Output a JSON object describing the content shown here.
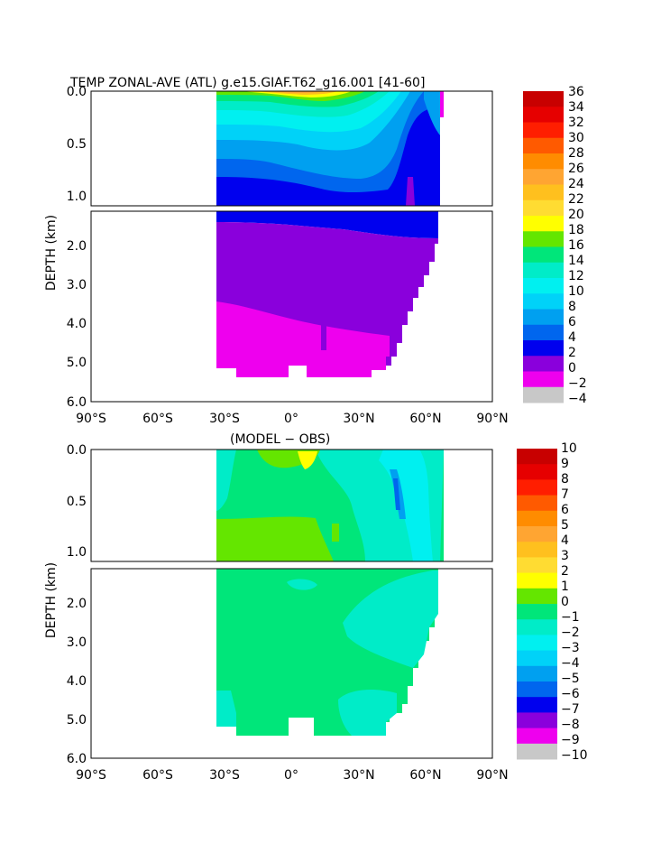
{
  "colors": {
    "temp_scale": [
      "#707070",
      "#c8c8c8",
      "#ee00ee",
      "#8a00dc",
      "#0000ee",
      "#0066ee",
      "#00a0f0",
      "#00d2f8",
      "#00f0f0",
      "#00ecc8",
      "#00e67a",
      "#64e600",
      "#ffff00",
      "#ffdc32",
      "#ffc01e",
      "#ffa532",
      "#ff8c00",
      "#ff5a00",
      "#ff1e00",
      "#e60000",
      "#c80000"
    ],
    "diff_scale": [
      "#707070",
      "#c8c8c8",
      "#ee00ee",
      "#8a00dc",
      "#0000ee",
      "#0066ee",
      "#00a0f0",
      "#00d2f8",
      "#00f0f0",
      "#00ecc8",
      "#00e67a",
      "#64e600",
      "#ffff00",
      "#ffdc32",
      "#ffc01e",
      "#ffa532",
      "#ff8c00",
      "#ff5a00",
      "#ff1e00",
      "#e60000",
      "#c80000"
    ]
  },
  "chart_data": [
    {
      "type": "heatmap",
      "title": "TEMP ZONAL-AVE (ATL) g.e15.GIAF.T62_g16.001 [41-60]",
      "ylabel": "DEPTH (km)",
      "xlabel": "",
      "x_ticks": [
        "90°S",
        "60°S",
        "30°S",
        "0°",
        "30°N",
        "60°N",
        "90°N"
      ],
      "x_range": [
        -90,
        90
      ],
      "y_ticks_upper": [
        "0.0",
        "0.5",
        "1.0"
      ],
      "y_ticks_lower": [
        "2.0",
        "3.0",
        "4.0",
        "5.0",
        "6.0"
      ],
      "y_range_upper": [
        0,
        1.1
      ],
      "y_range_lower": [
        1.1,
        6.0
      ],
      "colorbar_labels": [
        "36",
        "34",
        "32",
        "30",
        "28",
        "26",
        "24",
        "22",
        "20",
        "18",
        "16",
        "14",
        "12",
        "10",
        "8",
        "6",
        "4",
        "2",
        "0",
        "−2",
        "−4"
      ],
      "colorbar_range": [
        -4,
        36
      ],
      "data_extent_lat": [
        -34,
        67
      ],
      "surface_max": 26,
      "deep_value": 2
    },
    {
      "type": "heatmap",
      "title": "(MODEL − OBS)",
      "ylabel": "DEPTH (km)",
      "xlabel": "",
      "x_ticks": [
        "90°S",
        "60°S",
        "30°S",
        "0°",
        "30°N",
        "60°N",
        "90°N"
      ],
      "x_range": [
        -90,
        90
      ],
      "y_ticks_upper": [
        "0.0",
        "0.5",
        "1.0"
      ],
      "y_ticks_lower": [
        "2.0",
        "3.0",
        "4.0",
        "5.0",
        "6.0"
      ],
      "y_range_upper": [
        0,
        1.1
      ],
      "y_range_lower": [
        1.1,
        6.0
      ],
      "colorbar_labels": [
        "10",
        "9",
        "8",
        "7",
        "6",
        "5",
        "4",
        "3",
        "2",
        "1",
        "0",
        "−1",
        "−2",
        "−3",
        "−4",
        "−5",
        "−6",
        "−7",
        "−8",
        "−9",
        "−10"
      ],
      "colorbar_range": [
        -10,
        10
      ],
      "data_extent_lat": [
        -34,
        67
      ],
      "dominant_value": 0.5
    }
  ]
}
